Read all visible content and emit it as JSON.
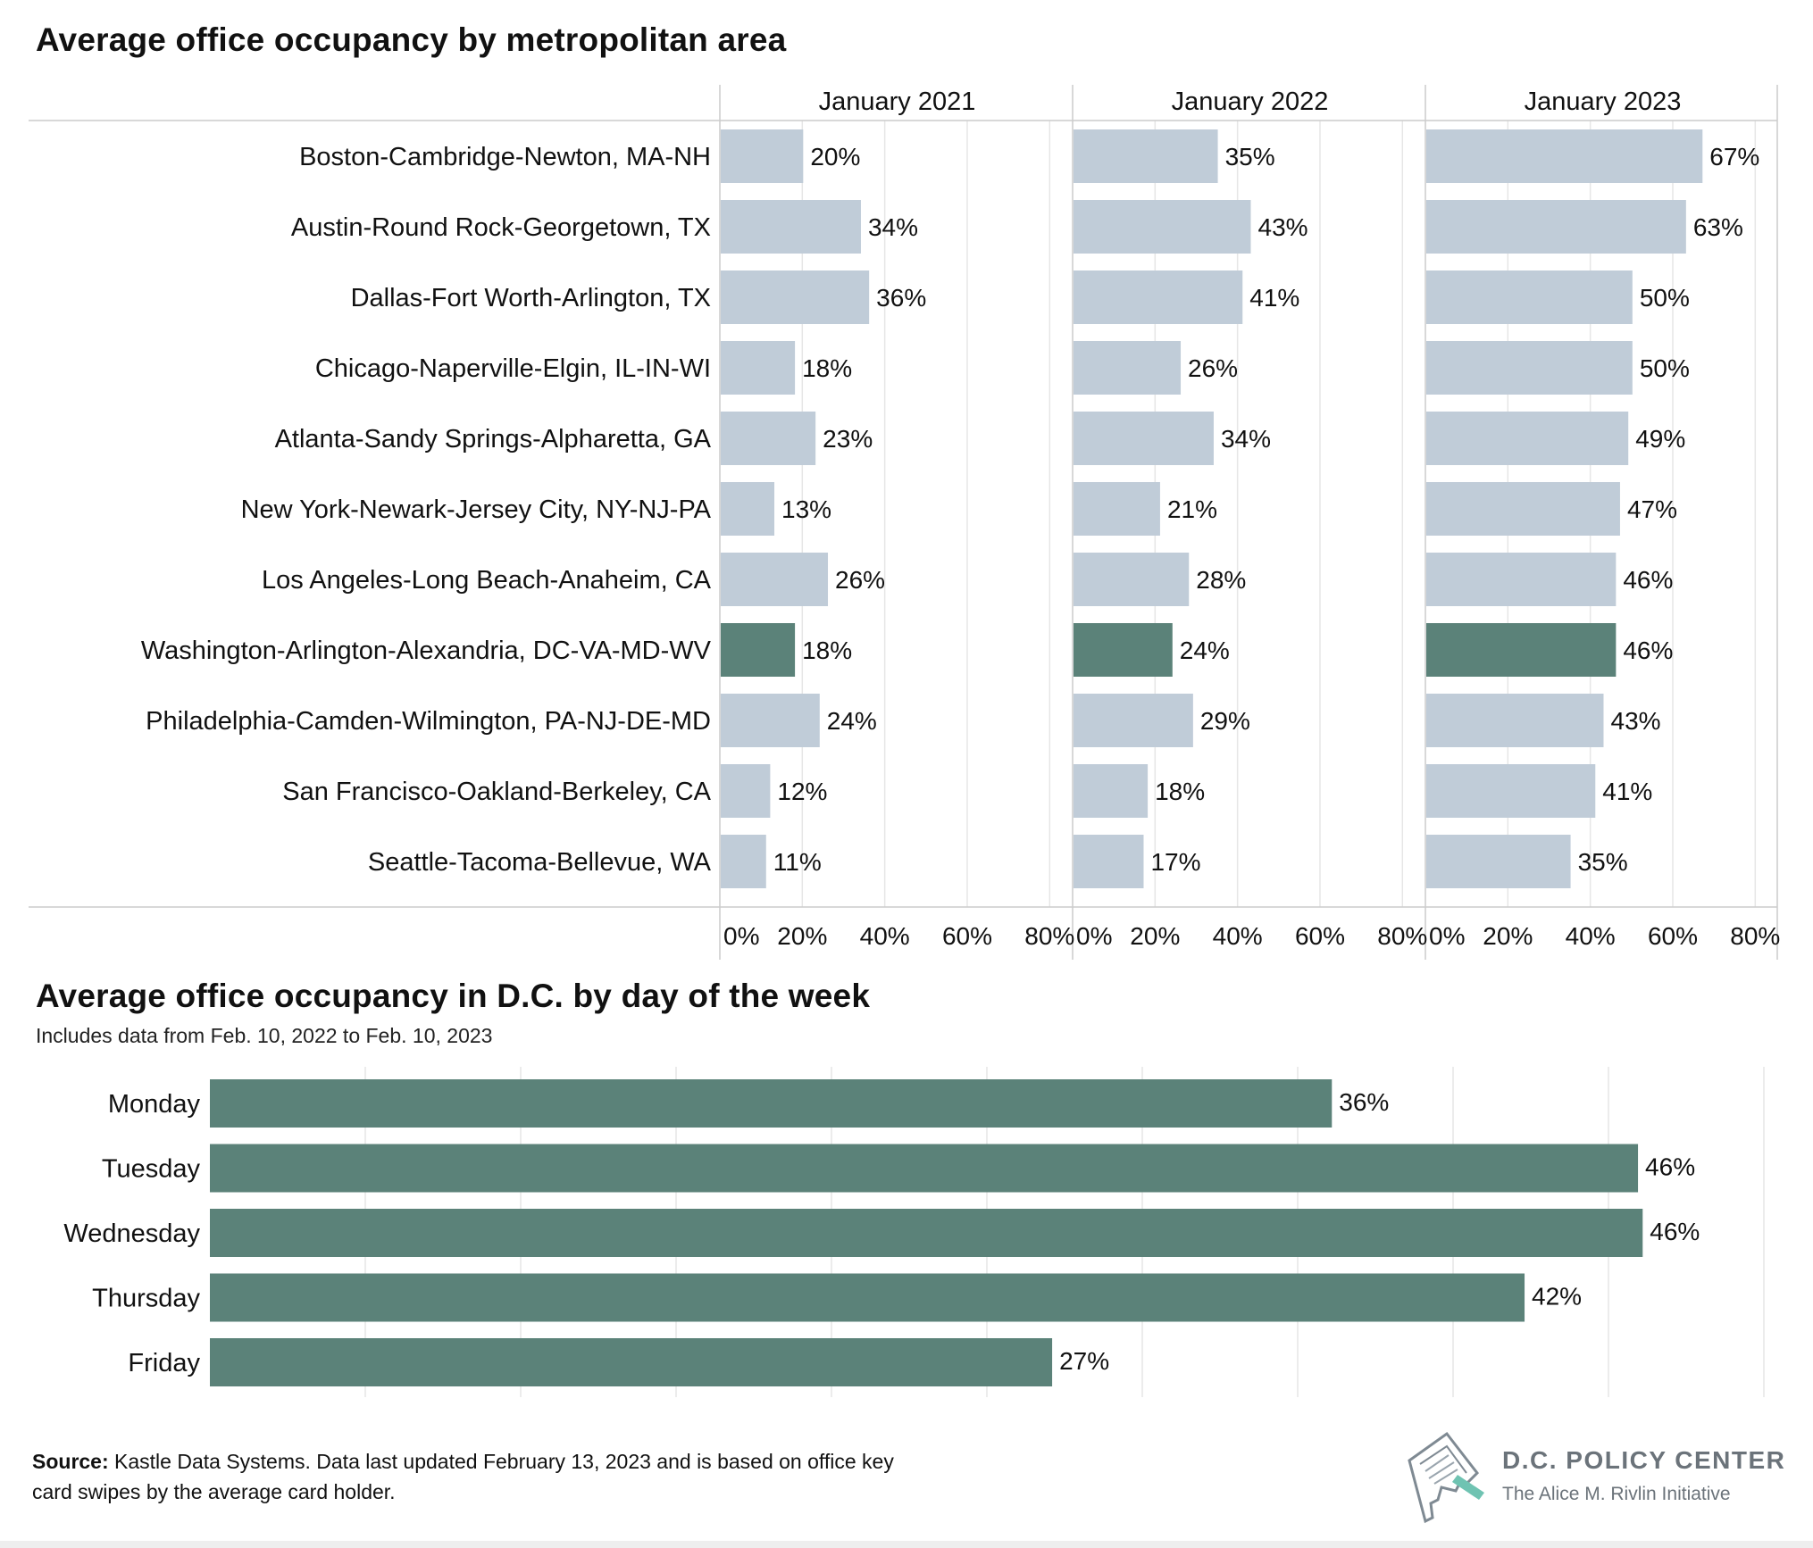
{
  "chart_data": [
    {
      "type": "bar",
      "orientation": "horizontal",
      "title": "Average office occupancy by metropolitan area",
      "categories": [
        "Boston-Cambridge-Newton, MA-NH",
        "Austin-Round Rock-Georgetown, TX",
        "Dallas-Fort Worth-Arlington, TX",
        "Chicago-Naperville-Elgin, IL-IN-WI",
        "Atlanta-Sandy Springs-Alpharetta, GA",
        "New York-Newark-Jersey City, NY-NJ-PA",
        "Los Angeles-Long Beach-Anaheim, CA",
        "Washington-Arlington-Alexandria, DC-VA-MD-WV",
        "Philadelphia-Camden-Wilmington, PA-NJ-DE-MD",
        "San Francisco-Oakland-Berkeley, CA",
        "Seattle-Tacoma-Bellevue, WA"
      ],
      "highlight": "Washington-Arlington-Alexandria, DC-VA-MD-WV",
      "series": [
        {
          "name": "January 2021",
          "values": [
            20,
            34,
            36,
            18,
            23,
            13,
            26,
            18,
            24,
            12,
            11
          ]
        },
        {
          "name": "January 2022",
          "values": [
            35,
            43,
            41,
            26,
            34,
            21,
            28,
            24,
            29,
            18,
            17
          ]
        },
        {
          "name": "January 2023",
          "values": [
            67,
            63,
            50,
            50,
            49,
            47,
            46,
            46,
            43,
            41,
            35
          ]
        }
      ],
      "xlim": [
        0,
        86
      ],
      "xticks": [
        "0%",
        "20%",
        "40%",
        "60%",
        "80%"
      ],
      "xtick_values": [
        0,
        20,
        40,
        60,
        80
      ],
      "value_suffix": "%",
      "grid": true
    },
    {
      "type": "bar",
      "orientation": "horizontal",
      "title": "Average office occupancy in D.C. by day of the week",
      "subtitle": "Includes data from Feb. 10, 2022 to Feb. 10, 2023",
      "categories": [
        "Monday",
        "Tuesday",
        "Wednesday",
        "Thursday",
        "Friday"
      ],
      "values": [
        36,
        46,
        46,
        42,
        27
      ],
      "raw_values": [
        36.1,
        45.95,
        46.1,
        42.3,
        27.1
      ],
      "xlim": [
        0,
        50
      ],
      "gridlines": [
        5,
        10,
        15,
        20,
        25,
        30,
        35,
        40,
        45,
        50
      ],
      "value_suffix": "%",
      "grid": true
    }
  ],
  "colors": {
    "bar": "#c0ccd8",
    "highlight": "#5b8279",
    "grid": "#e6e6e6",
    "axis": "#cccccc",
    "text": "#111111"
  },
  "footer": {
    "source_label": "Source:",
    "source_text": "Kastle Data Systems. Data last updated February 13, 2023 and is based on office key card swipes by the average card holder."
  },
  "brand": {
    "name": "D.C. POLICY CENTER",
    "tagline": "The Alice M. Rivlin Initiative",
    "logo_icon": "dc-map-pen-icon"
  }
}
